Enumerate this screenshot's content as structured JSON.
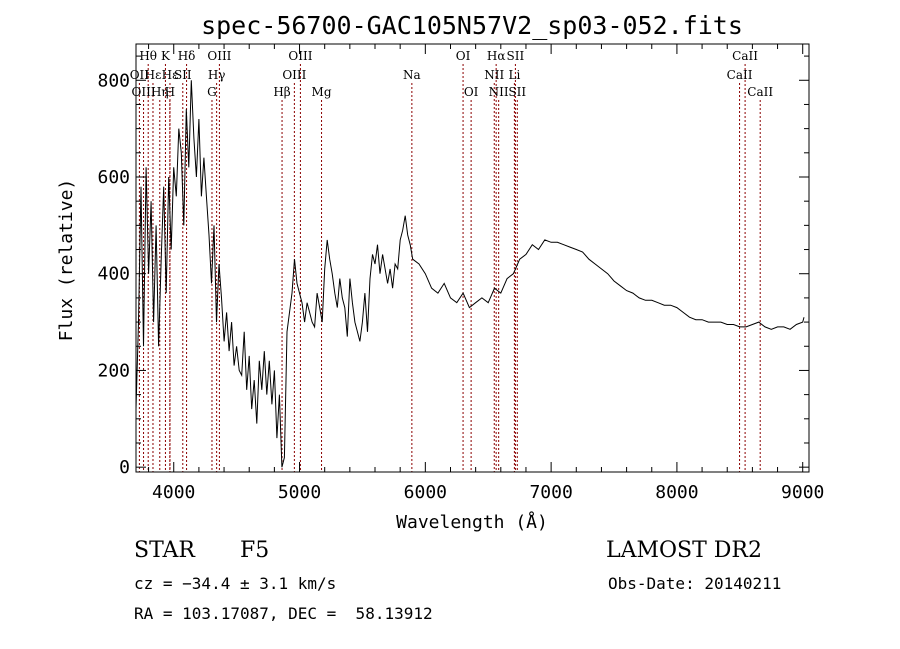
{
  "chart_data": {
    "type": "line",
    "title": "spec-56700-GAC105N57V2_sp03-052.fits",
    "xlabel": "Wavelength (Å)",
    "ylabel": "Flux (relative)",
    "xlim": [
      3700,
      9050
    ],
    "ylim": [
      -10,
      875
    ],
    "xticks": [
      4000,
      5000,
      6000,
      7000,
      8000,
      9000
    ],
    "xtick_labels": [
      "4000",
      "5000",
      "6000",
      "7000",
      "8000",
      "9000"
    ],
    "yticks": [
      0,
      200,
      400,
      600,
      800
    ],
    "ytick_labels": [
      "0",
      "200",
      "400",
      "600",
      "800"
    ],
    "grid": false,
    "series": [
      {
        "x": [
          3700,
          3720,
          3740,
          3760,
          3780,
          3800,
          3820,
          3840,
          3860,
          3880,
          3900,
          3920,
          3940,
          3960,
          3980,
          4000,
          4020,
          4040,
          4060,
          4080,
          4100,
          4120,
          4140,
          4160,
          4180,
          4200,
          4220,
          4240,
          4260,
          4280,
          4300,
          4320,
          4340,
          4360,
          4380,
          4400,
          4420,
          4440,
          4460,
          4480,
          4500,
          4520,
          4540,
          4560,
          4580,
          4600,
          4620,
          4640,
          4660,
          4680,
          4700,
          4720,
          4740,
          4760,
          4780,
          4800,
          4820,
          4840,
          4860,
          4880,
          4900,
          4920,
          4940,
          4960,
          4980,
          5000,
          5020,
          5040,
          5060,
          5080,
          5100,
          5120,
          5140,
          5160,
          5180,
          5200,
          5220,
          5240,
          5260,
          5280,
          5300,
          5320,
          5340,
          5360,
          5380,
          5400,
          5420,
          5440,
          5460,
          5480,
          5500,
          5520,
          5540,
          5560,
          5580,
          5600,
          5620,
          5640,
          5660,
          5680,
          5700,
          5720,
          5740,
          5760,
          5780,
          5800,
          5820,
          5840,
          5860,
          5880,
          5900,
          5950,
          6000,
          6050,
          6100,
          6150,
          6200,
          6250,
          6300,
          6350,
          6400,
          6450,
          6500,
          6550,
          6600,
          6650,
          6700,
          6750,
          6800,
          6850,
          6900,
          6950,
          7000,
          7050,
          7100,
          7150,
          7200,
          7250,
          7300,
          7350,
          7400,
          7450,
          7500,
          7550,
          7600,
          7650,
          7700,
          7750,
          7800,
          7850,
          7900,
          7950,
          8000,
          8050,
          8100,
          8150,
          8200,
          8250,
          8300,
          8350,
          8400,
          8450,
          8500,
          8550,
          8600,
          8650,
          8700,
          8750,
          8800,
          8850,
          8900,
          8950,
          9000,
          9010
        ],
        "y": [
          120,
          300,
          580,
          250,
          620,
          400,
          550,
          300,
          500,
          250,
          430,
          580,
          360,
          600,
          450,
          620,
          560,
          700,
          650,
          500,
          740,
          620,
          800,
          680,
          600,
          720,
          560,
          640,
          560,
          480,
          380,
          500,
          300,
          420,
          350,
          260,
          320,
          240,
          300,
          210,
          250,
          200,
          190,
          280,
          160,
          230,
          120,
          180,
          90,
          220,
          160,
          240,
          150,
          220,
          130,
          200,
          60,
          150,
          0,
          20,
          280,
          320,
          360,
          430,
          380,
          360,
          340,
          300,
          340,
          320,
          300,
          290,
          360,
          330,
          300,
          410,
          470,
          430,
          400,
          360,
          330,
          390,
          350,
          330,
          270,
          390,
          340,
          300,
          280,
          260,
          300,
          360,
          280,
          390,
          440,
          420,
          460,
          400,
          440,
          410,
          380,
          410,
          370,
          420,
          410,
          470,
          490,
          520,
          480,
          460,
          430,
          420,
          400,
          370,
          360,
          380,
          350,
          340,
          360,
          330,
          340,
          350,
          340,
          370,
          360,
          390,
          400,
          430,
          440,
          460,
          450,
          470,
          465,
          465,
          460,
          455,
          450,
          445,
          430,
          420,
          410,
          400,
          385,
          375,
          365,
          360,
          350,
          345,
          345,
          340,
          335,
          335,
          330,
          320,
          310,
          305,
          305,
          300,
          300,
          300,
          295,
          295,
          290,
          290,
          295,
          300,
          290,
          285,
          290,
          290,
          285,
          295,
          300,
          310
        ]
      }
    ],
    "spectral_lines": [
      {
        "name": "Hθ",
        "x": 3797,
        "row": 0
      },
      {
        "name": "OII",
        "x": 3727,
        "row": 1
      },
      {
        "name": "OIII",
        "x": 3760,
        "row": 2
      },
      {
        "name": "Hε",
        "x": 3835,
        "row": 1
      },
      {
        "name": "Hη",
        "x": 3889,
        "row": 2
      },
      {
        "name": "K",
        "x": 3934,
        "row": 0
      },
      {
        "name": "Hε",
        "x": 3970,
        "row": 1
      },
      {
        "name": "H",
        "x": 3969,
        "row": 2
      },
      {
        "name": "SII",
        "x": 4072,
        "row": 1
      },
      {
        "name": "Hδ",
        "x": 4102,
        "row": 0
      },
      {
        "name": "OIII",
        "x": 4363,
        "row": 0
      },
      {
        "name": "Hγ",
        "x": 4341,
        "row": 1
      },
      {
        "name": "G",
        "x": 4304,
        "row": 2
      },
      {
        "name": "Hβ",
        "x": 4861,
        "row": 2
      },
      {
        "name": "OIII",
        "x": 5007,
        "row": 0
      },
      {
        "name": "OIII",
        "x": 4959,
        "row": 1
      },
      {
        "name": "Mg",
        "x": 5175,
        "row": 2
      },
      {
        "name": "Na",
        "x": 5893,
        "row": 1
      },
      {
        "name": "OI",
        "x": 6300,
        "row": 0
      },
      {
        "name": "OI",
        "x": 6364,
        "row": 2
      },
      {
        "name": "Hα",
        "x": 6563,
        "row": 0
      },
      {
        "name": "NII",
        "x": 6548,
        "row": 1
      },
      {
        "name": "NII",
        "x": 6583,
        "row": 2
      },
      {
        "name": "SII",
        "x": 6716,
        "row": 0
      },
      {
        "name": "Li",
        "x": 6708,
        "row": 1
      },
      {
        "name": "SII",
        "x": 6731,
        "row": 2
      },
      {
        "name": "CaII",
        "x": 8542,
        "row": 0
      },
      {
        "name": "CaII",
        "x": 8498,
        "row": 1
      },
      {
        "name": "CaII",
        "x": 8662,
        "row": 2
      }
    ],
    "colors": {
      "spectrum": "#000000",
      "marker_lines": "#8b0000"
    }
  },
  "info": {
    "object_class": "STAR",
    "subclass": "F5",
    "survey": "LAMOST DR2",
    "redshift": "cz = −34.4 ± 3.1 km/s",
    "obs_date": "Obs-Date: 20140211",
    "coordinates": "RA = 103.17087, DEC =  58.13912"
  }
}
